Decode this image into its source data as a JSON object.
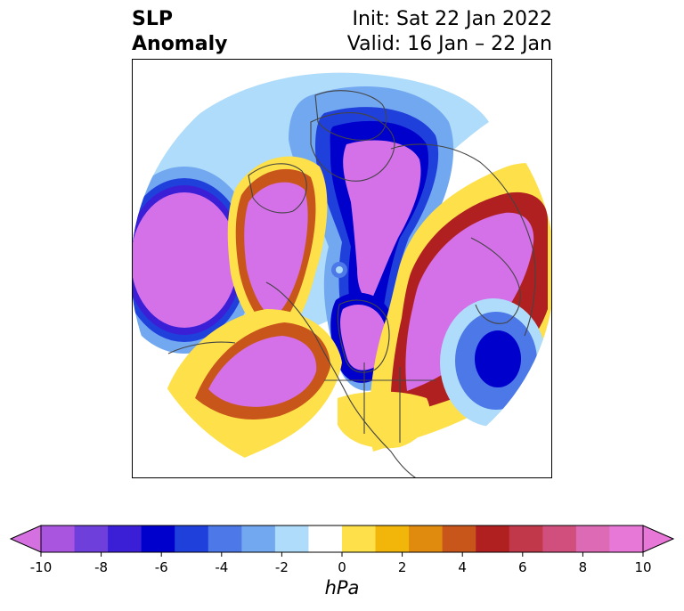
{
  "title": {
    "left_line1": "SLP",
    "left_line2": "Anomaly",
    "right_line1": "Init: Sat 22 Jan 2022",
    "right_line2": "Valid: 16 Jan – 22 Jan"
  },
  "map": {
    "projection": "north-polar-stereographic",
    "field": "SLP Anomaly",
    "features": [
      {
        "name": "negative-anomaly-arctic",
        "sign": "negative",
        "min_value": -10
      },
      {
        "name": "negative-anomaly-north-pacific",
        "sign": "negative",
        "min_value": -10
      },
      {
        "name": "negative-anomaly-hudson-bay",
        "sign": "negative",
        "min_value": -10
      },
      {
        "name": "negative-anomaly-north-atlantic",
        "sign": "negative",
        "min_value": -6
      },
      {
        "name": "positive-anomaly-siberia",
        "sign": "positive",
        "max_value": 10
      },
      {
        "name": "positive-anomaly-alaska",
        "sign": "positive",
        "max_value": 10
      },
      {
        "name": "positive-anomaly-europe",
        "sign": "positive",
        "max_value": 10
      },
      {
        "name": "positive-anomaly-north-america",
        "sign": "positive",
        "max_value": 3
      }
    ]
  },
  "colorbar": {
    "unit": "hPa",
    "extend": "both",
    "min": -10,
    "max": 10,
    "ticks": [
      "-10",
      "-8",
      "-6",
      "-4",
      "-2",
      "0",
      "2",
      "4",
      "6",
      "8",
      "10"
    ],
    "levels": [
      -10,
      -9,
      -8,
      -7,
      -6,
      -5,
      -4,
      -3,
      -2,
      -1,
      1,
      2,
      3,
      4,
      5,
      6,
      7,
      8,
      9,
      10
    ],
    "colors": [
      "#a955e0",
      "#6f3fdc",
      "#3a1fd6",
      "#0000cd",
      "#2040dc",
      "#4c78e8",
      "#72a8f0",
      "#aedcfa",
      "#ffffff",
      "#fde04a",
      "#f2b50a",
      "#e08a0e",
      "#c8561a",
      "#b02020",
      "#c0384a",
      "#d04f7c",
      "#dd6ab4",
      "#e878d8"
    ],
    "under_color": "#d470e0",
    "over_color": "#e878d8"
  },
  "palette": {
    "neg_extreme": "#d470e8",
    "neg_9": "#a955e0",
    "neg_8": "#6f3fdc",
    "neg_7": "#3a1fd6",
    "neg_6": "#0000cd",
    "neg_5": "#2040dc",
    "neg_4": "#4c78e8",
    "neg_3": "#72a8f0",
    "neg_2": "#aedcfa",
    "pos_2": "#fde04a",
    "pos_3": "#f2b50a",
    "pos_4": "#e08a0e",
    "pos_5": "#c8561a",
    "pos_6": "#b02020",
    "pos_7": "#c0384a",
    "pos_8": "#d04f7c",
    "pos_9": "#dd6ab4",
    "pos_extreme": "#d470e8",
    "coastline": "#444444"
  }
}
